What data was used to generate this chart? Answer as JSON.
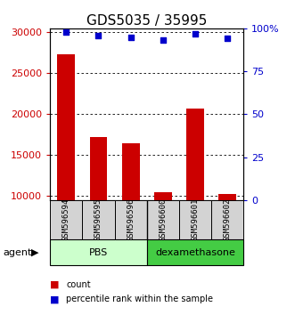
{
  "title": "GDS5035 / 35995",
  "samples": [
    "GSM596594",
    "GSM596595",
    "GSM596596",
    "GSM596600",
    "GSM596601",
    "GSM596602"
  ],
  "counts": [
    27300,
    17200,
    16400,
    10500,
    20700,
    10200
  ],
  "percentile_ranks": [
    98,
    96,
    95,
    93,
    97,
    94
  ],
  "groups": [
    {
      "label": "PBS",
      "color_light": "#ccffcc",
      "color_dark": "#44cc44",
      "n": 3
    },
    {
      "label": "dexamethasone",
      "color_light": "#44cc44",
      "color_dark": "#22aa22",
      "n": 3
    }
  ],
  "ylim_left": [
    9500,
    30500
  ],
  "yticks_left": [
    10000,
    15000,
    20000,
    25000,
    30000
  ],
  "ylim_right": [
    0,
    100
  ],
  "yticks_right": [
    0,
    25,
    50,
    75,
    100
  ],
  "yticklabels_right": [
    "0",
    "25",
    "50",
    "75",
    "100%"
  ],
  "bar_color": "#cc0000",
  "dot_color": "#0000cc",
  "agent_label": "agent",
  "legend_count_label": "count",
  "legend_pct_label": "percentile rank within the sample",
  "bg_color": "#ffffff",
  "title_fontsize": 11,
  "tick_fontsize": 8,
  "sample_fontsize": 6.5
}
